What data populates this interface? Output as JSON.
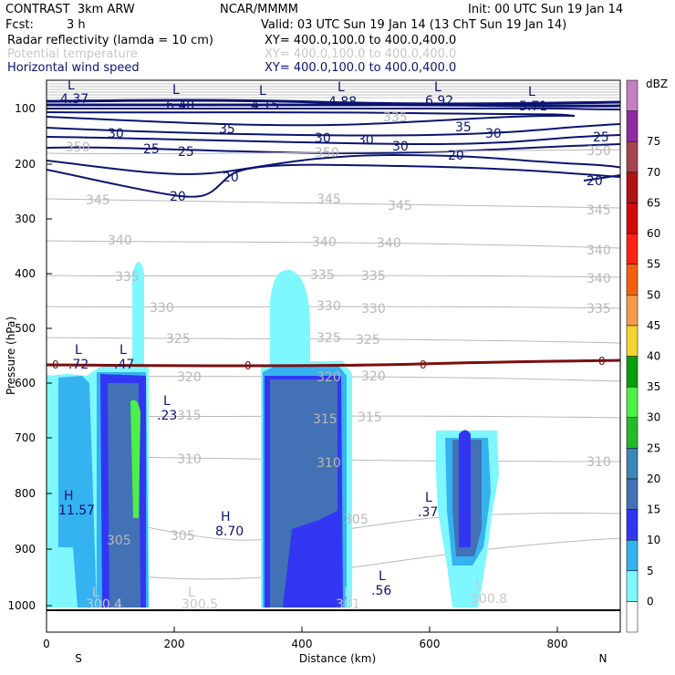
{
  "header": {
    "title": "CONTRAST  3km ARW",
    "center": "NCAR/MMMM",
    "init": "Init: 00 UTC Sun 19 Jan 14",
    "fcst_label": "Fcst:",
    "fcst_value": "3 h",
    "valid": "Valid: 03 UTC Sun 19 Jan 14 (13 ChT Sun 19 Jan 14)",
    "fields": [
      {
        "name": "Radar reflectivity (lamda = 10 cm)",
        "xy": "XY= 400.0,100.0 to 400.0,400.0",
        "color": "#000000"
      },
      {
        "name": "Potential temperature",
        "xy": "XY= 400.0,100.0 to 400.0,400.0",
        "color": "#c8c8c8"
      },
      {
        "name": "Horizontal wind speed",
        "xy": "XY= 400.0,100.0 to 400.0,400.0",
        "color": "#0b1470"
      }
    ]
  },
  "chart_data": {
    "type": "heatmap",
    "xlabel": "Distance (km)",
    "ylabel": "Pressure (hPa)",
    "xlim": [
      0,
      900
    ],
    "ylim": [
      1050,
      50
    ],
    "x_ticks": [
      "0",
      "200",
      "400",
      "600",
      "800"
    ],
    "y_ticks": [
      "100",
      "200",
      "300",
      "400",
      "500",
      "600",
      "700",
      "800",
      "900",
      "1000"
    ],
    "x_end_labels": {
      "left": "S",
      "right": "N"
    },
    "colorbar": {
      "unit": "dBZ",
      "levels": [
        0,
        5,
        10,
        15,
        20,
        25,
        30,
        35,
        40,
        45,
        50,
        55,
        60,
        65,
        70,
        75
      ],
      "colors": [
        "#ffffff",
        "#7ff7ff",
        "#35b2f0",
        "#3236f2",
        "#4271b6",
        "#3a86b5",
        "#23b92b",
        "#4df046",
        "#0a9e0a",
        "#f5d52e",
        "#f49a49",
        "#f2600b",
        "#fd2216",
        "#d30a0a",
        "#b11214",
        "#a3444f",
        "#8e2ba0",
        "#c47fc2"
      ]
    },
    "wind_speed_contours": [
      "35",
      "30",
      "30",
      "30",
      "30",
      "25",
      "25",
      "25",
      "20",
      "20",
      "20",
      "20",
      "35",
      "30",
      "25",
      "35"
    ],
    "theta_contours": [
      "350",
      "345",
      "345",
      "345",
      "340",
      "340",
      "340",
      "340",
      "335",
      "335",
      "335",
      "330",
      "330",
      "330",
      "325",
      "325",
      "325",
      "320",
      "320",
      "320",
      "315",
      "315",
      "315",
      "310",
      "310",
      "310",
      "305",
      "305",
      "305",
      "350",
      "335",
      "350",
      "345",
      "340",
      "335"
    ],
    "freezing_level_labels": [
      "0",
      "0",
      "0",
      "0"
    ],
    "highs_lows": [
      {
        "label": "L",
        "value": "4.37"
      },
      {
        "label": "L",
        "value": "6.40"
      },
      {
        "label": "L",
        "value": "4.15"
      },
      {
        "label": "L",
        "value": "4.88"
      },
      {
        "label": "L",
        "value": "6.92"
      },
      {
        "label": "L",
        "value": "5.71"
      },
      {
        "label": "L",
        "value": ".72"
      },
      {
        "label": "L",
        "value": ".47"
      },
      {
        "label": "L",
        "value": ".23"
      },
      {
        "label": "H",
        "value": "11.57"
      },
      {
        "label": "H",
        "value": "8.70"
      },
      {
        "label": "L",
        "value": ".37"
      },
      {
        "label": "L",
        "value": ".56"
      }
    ],
    "surface_theta": [
      {
        "label": "L",
        "value": "300.4"
      },
      {
        "label": "L",
        "value": "300.5"
      },
      {
        "label": "L",
        "value": "301"
      },
      {
        "label": "L",
        "value": "300.8"
      }
    ]
  }
}
